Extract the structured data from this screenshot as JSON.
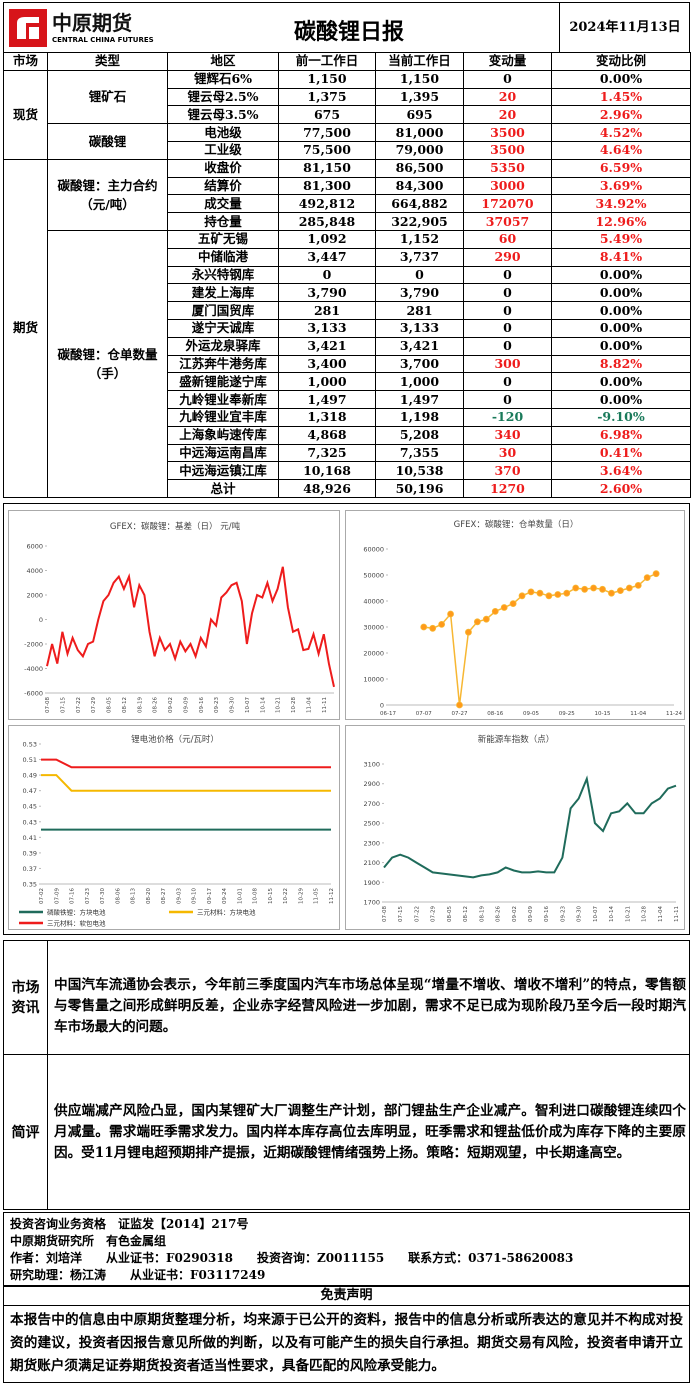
{
  "header": {
    "logo_cn": "中原期货",
    "logo_en": "CENTRAL CHINA FUTURES",
    "title": "碳酸锂日报",
    "date": "2024年11月13日"
  },
  "table": {
    "columns": [
      "市场",
      "类型",
      "地区",
      "前一工作日",
      "当前工作日",
      "变动量",
      "变动比例"
    ],
    "markets": [
      {
        "name": "现货",
        "types": [
          {
            "name": "锂矿石",
            "rows": [
              [
                "锂辉石6%",
                "1,150",
                "1,150",
                "0",
                "0.00%"
              ],
              [
                "锂云母2.5%",
                "1,375",
                "1,395",
                "20",
                "1.45%"
              ],
              [
                "锂云母3.5%",
                "675",
                "695",
                "20",
                "2.96%"
              ]
            ]
          },
          {
            "name": "碳酸锂",
            "rows": [
              [
                "电池级",
                "77,500",
                "81,000",
                "3500",
                "4.52%"
              ],
              [
                "工业级",
                "75,500",
                "79,000",
                "3500",
                "4.64%"
              ]
            ]
          }
        ]
      },
      {
        "name": "期货",
        "types": [
          {
            "name": "碳酸锂：主力合约（元/吨）",
            "rows": [
              [
                "收盘价",
                "81,150",
                "86,500",
                "5350",
                "6.59%"
              ],
              [
                "结算价",
                "81,300",
                "84,300",
                "3000",
                "3.69%"
              ],
              [
                "成交量",
                "492,812",
                "664,882",
                "172070",
                "34.92%"
              ],
              [
                "持仓量",
                "285,848",
                "322,905",
                "37057",
                "12.96%"
              ]
            ]
          },
          {
            "name": "碳酸锂：仓单数量（手）",
            "rows": [
              [
                "五矿无锡",
                "1,092",
                "1,152",
                "60",
                "5.49%"
              ],
              [
                "中储临港",
                "3,447",
                "3,737",
                "290",
                "8.41%"
              ],
              [
                "永兴特钢库",
                "0",
                "0",
                "0",
                "0.00%"
              ],
              [
                "建发上海库",
                "3,790",
                "3,790",
                "0",
                "0.00%"
              ],
              [
                "厦门国贸库",
                "281",
                "281",
                "0",
                "0.00%"
              ],
              [
                "遂宁天诚库",
                "3,133",
                "3,133",
                "0",
                "0.00%"
              ],
              [
                "外运龙泉驿库",
                "3,421",
                "3,421",
                "0",
                "0.00%"
              ],
              [
                "江苏奔牛港务库",
                "3,400",
                "3,700",
                "300",
                "8.82%"
              ],
              [
                "盛新锂能遂宁库",
                "1,000",
                "1,000",
                "0",
                "0.00%"
              ],
              [
                "九岭锂业奉新库",
                "1,497",
                "1,497",
                "0",
                "0.00%"
              ],
              [
                "九岭锂业宜丰库",
                "1,318",
                "1,198",
                "-120",
                "-9.10%"
              ],
              [
                "上海象屿速传库",
                "4,868",
                "5,208",
                "340",
                "6.98%"
              ],
              [
                "中远海运南昌库",
                "7,325",
                "7,355",
                "30",
                "0.41%"
              ],
              [
                "中远海运镇江库",
                "10,168",
                "10,538",
                "370",
                "3.64%"
              ],
              [
                "总计",
                "48,926",
                "50,196",
                "1270",
                "2.60%"
              ]
            ]
          }
        ]
      }
    ]
  },
  "chart_data": [
    {
      "type": "line",
      "title": "GFEX：碳酸锂：基差（日）  元/吨",
      "ylim": [
        -6000,
        6000
      ],
      "yticks": [
        -6000,
        -4000,
        -2000,
        0,
        2000,
        4000,
        6000
      ],
      "categories": [
        "07-08",
        null,
        null,
        "07-15",
        null,
        null,
        "07-22",
        null,
        null,
        "07-29",
        null,
        null,
        "08-05",
        null,
        null,
        "08-12",
        null,
        null,
        "08-19",
        null,
        null,
        "08-26",
        null,
        null,
        "09-02",
        null,
        null,
        "09-09",
        null,
        null,
        "09-16",
        null,
        null,
        "09-23",
        null,
        null,
        "09-30",
        null,
        null,
        "10-07",
        null,
        null,
        "10-14",
        null,
        null,
        "10-21",
        null,
        null,
        "10-28",
        null,
        null,
        "11-04",
        null,
        null,
        "11-11",
        null,
        null
      ],
      "series": [
        {
          "color": "#ee1c1c",
          "values": [
            -3800,
            -2000,
            -3600,
            -1000,
            -2800,
            -1500,
            -2500,
            -3000,
            -2000,
            -1800,
            0,
            1500,
            2000,
            3000,
            3500,
            2500,
            3500,
            1000,
            2800,
            2000,
            -1000,
            -3000,
            -1500,
            -2500,
            -2000,
            -3200,
            -1800,
            -2600,
            -2000,
            -3000,
            -1500,
            -2200,
            0,
            -500,
            1800,
            2200,
            2800,
            3000,
            1500,
            -2000,
            500,
            2000,
            1800,
            3000,
            1500,
            2500,
            4300,
            1000,
            -1000,
            -800,
            -2500,
            -2400,
            -1200,
            -2800,
            -1200,
            -3600,
            -5500
          ]
        }
      ]
    },
    {
      "type": "line",
      "title": "GFEX：碳酸锂：仓单数量（日）",
      "ylim": [
        0,
        60000
      ],
      "yticks": [
        0,
        10000,
        20000,
        30000,
        40000,
        50000,
        60000
      ],
      "markers": true,
      "marker_color": "#ff9a1a",
      "categories": [
        "06-17",
        null,
        null,
        null,
        "07-07",
        null,
        null,
        null,
        "07-27",
        null,
        null,
        null,
        "08-16",
        null,
        null,
        null,
        "09-05",
        null,
        null,
        null,
        "09-25",
        null,
        null,
        null,
        "10-15",
        null,
        null,
        null,
        "11-04",
        null,
        null,
        null,
        "11-24"
      ],
      "series": [
        {
          "color": "#f7b733",
          "values": [
            null,
            null,
            null,
            null,
            30000,
            29500,
            31000,
            35000,
            0,
            28000,
            32000,
            33000,
            36000,
            37500,
            39000,
            42000,
            43500,
            43000,
            42000,
            42500,
            43000,
            45000,
            44500,
            45000,
            44500,
            43000,
            44000,
            45000,
            46000,
            49000,
            50500,
            null,
            null
          ]
        }
      ]
    },
    {
      "type": "line",
      "title": "锂电池价格（元/瓦时）",
      "ylim": [
        0.35,
        0.53
      ],
      "yticks": [
        0.35,
        0.37,
        0.39,
        0.41,
        0.43,
        0.45,
        0.47,
        0.49,
        0.51,
        0.53
      ],
      "legend": "bottom",
      "categories": [
        "07-02",
        "07-09",
        "07-16",
        "07-23",
        "07-30",
        "08-06",
        "08-13",
        "08-20",
        "08-27",
        "09-03",
        "09-10",
        "09-17",
        "09-24",
        "10-01",
        "10-08",
        "10-15",
        "10-22",
        "10-29",
        "11-05",
        "11-12"
      ],
      "series": [
        {
          "name": "磷酸铁锂：方块电池",
          "color": "#1f6b5b",
          "values": [
            0.42,
            0.42,
            0.42,
            0.42,
            0.42,
            0.42,
            0.42,
            0.42,
            0.42,
            0.42,
            0.42,
            0.42,
            0.42,
            0.42,
            0.42,
            0.42,
            0.42,
            0.42,
            0.42,
            0.42
          ]
        },
        {
          "name": "三元材料：方块电池",
          "color": "#f5b800",
          "values": [
            0.49,
            0.49,
            0.47,
            0.47,
            0.47,
            0.47,
            0.47,
            0.47,
            0.47,
            0.47,
            0.47,
            0.47,
            0.47,
            0.47,
            0.47,
            0.47,
            0.47,
            0.47,
            0.47,
            0.47
          ]
        },
        {
          "name": "三元材料：软包电池",
          "color": "#ee1c1c",
          "values": [
            0.51,
            0.51,
            0.5,
            0.5,
            0.5,
            0.5,
            0.5,
            0.5,
            0.5,
            0.5,
            0.5,
            0.5,
            0.5,
            0.5,
            0.5,
            0.5,
            0.5,
            0.5,
            0.5,
            0.5
          ]
        }
      ]
    },
    {
      "type": "line",
      "title": "新能源车指数（点）",
      "ylim": [
        1700,
        3100
      ],
      "yticks": [
        1700,
        1900,
        2100,
        2300,
        2500,
        2700,
        2900,
        3100
      ],
      "categories": [
        "07-08",
        null,
        "07-15",
        null,
        "07-22",
        null,
        "07-29",
        null,
        "08-05",
        null,
        "08-12",
        null,
        "08-19",
        null,
        "08-26",
        null,
        "09-02",
        null,
        "09-09",
        null,
        "09-16",
        null,
        "09-23",
        null,
        "09-30",
        null,
        "10-07",
        null,
        "10-14",
        null,
        "10-21",
        null,
        "10-28",
        null,
        "11-04",
        null,
        "11-11"
      ],
      "series": [
        {
          "color": "#1f6b5b",
          "values": [
            2050,
            2150,
            2180,
            2150,
            2100,
            2050,
            2000,
            1990,
            1980,
            1970,
            1960,
            1950,
            1970,
            1980,
            2000,
            2050,
            2020,
            2000,
            2000,
            2010,
            2000,
            2000,
            2150,
            2650,
            2750,
            2950,
            2500,
            2420,
            2600,
            2620,
            2700,
            2600,
            2600,
            2700,
            2750,
            2850,
            2880
          ]
        }
      ]
    }
  ],
  "news": {
    "label": "市场资讯",
    "text": "中国汽车流通协会表示，今年前三季度国内汽车市场总体呈现“增量不增收、增收不增利”的特点，零售额与零售量之间形成鲜明反差，企业赤字经营风险进一步加剧，需求不足已成为现阶段乃至今后一段时期汽车市场最大的问题。"
  },
  "comment": {
    "label": "简评",
    "text": "供应端减产风险凸显，国内某锂矿大厂调整生产计划，部门锂盐生产企业减产。智利进口碳酸锂连续四个月减量。需求端旺季需求发力。国内样本库存高位去库明显，旺季需求和锂盐低价成为库存下降的主要原因。受11月锂电超预期排产提振，近期碳酸锂情绪强势上扬。策略：短期观望，中长期逢高空。"
  },
  "footer": {
    "lines": [
      "投资咨询业务资格　证监发【2014】217号",
      "中原期货研究所　有色金属组",
      "作者：刘培洋　　从业证书：F0290318　　投资咨询：Z0011155　　联系方式：0371-58620083",
      "研究助理：杨江涛　　从业证书：F03117249"
    ],
    "disclaimer_title": "免责声明",
    "disclaimer": "本报告中的信息由中原期货整理分析，均来源于已公开的资料，报告中的信息分析或所表达的意见并不构成对投资的建议，投资者因报告意见所做的判断，以及有可能产生的损失自行承担。期货交易有风险，投资者申请开立期货账户须满足证券期货投资者适当性要求，具备匹配的风险承受能力。"
  }
}
